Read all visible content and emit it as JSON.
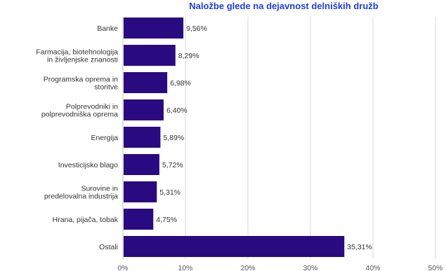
{
  "chart_data": {
    "type": "bar",
    "orientation": "horizontal",
    "title": "Naložbe glede na dejavnost delniških družb",
    "categories": [
      [
        "Banke"
      ],
      [
        "Farmacija, biotehnologija",
        "in življenjske znanosti"
      ],
      [
        "Programska oprema in",
        "storitve"
      ],
      [
        "Polprevodniki in",
        "polprevodniška oprema"
      ],
      [
        "Energija"
      ],
      [
        "Investicijsko blago"
      ],
      [
        "Surovine in",
        "predelovalna industrija"
      ],
      [
        "Hrana, pijača, tobak"
      ],
      [
        "Ostali"
      ]
    ],
    "values": [
      9.56,
      8.29,
      6.98,
      6.4,
      5.89,
      5.72,
      5.31,
      4.75,
      35.31
    ],
    "value_labels": [
      "9,56%",
      "8,29%",
      "6,98%",
      "6,40%",
      "5,89%",
      "5,72%",
      "5,31%",
      "4,75%",
      "35,31%"
    ],
    "xlim": [
      0,
      50
    ],
    "xticks": [
      0,
      10,
      20,
      30,
      40,
      50
    ],
    "xtick_labels": [
      "0%",
      "10%",
      "20%",
      "30%",
      "40%",
      "50%"
    ],
    "grid": true,
    "legend": "none",
    "bar_color": "#2a0a80"
  }
}
